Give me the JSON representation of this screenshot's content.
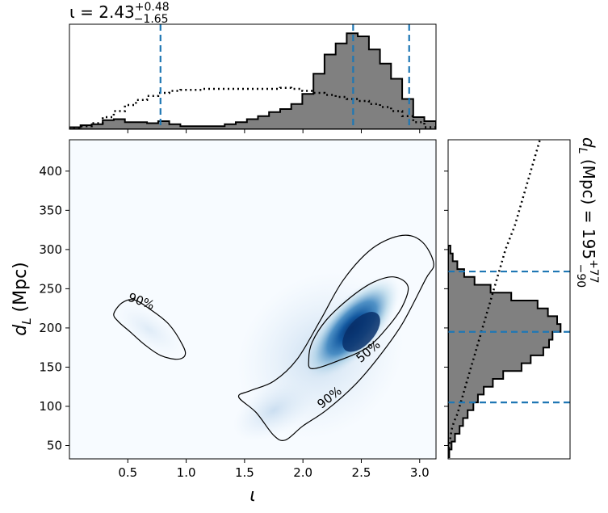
{
  "chart_data": {
    "type": "corner",
    "parameters": [
      "iota",
      "d_L"
    ],
    "marginal_x": {
      "title_main": "ι = 2.43",
      "title_sup": "+0.48",
      "title_sub": "−1.65",
      "median": 2.43,
      "lower": 0.78,
      "upper": 2.91,
      "bin_edges": [
        0.0,
        0.095,
        0.19,
        0.285,
        0.38,
        0.475,
        0.57,
        0.665,
        0.76,
        0.855,
        0.95,
        1.045,
        1.14,
        1.235,
        1.33,
        1.425,
        1.52,
        1.615,
        1.71,
        1.805,
        1.9,
        1.995,
        2.09,
        2.185,
        2.28,
        2.375,
        2.47,
        2.565,
        2.66,
        2.755,
        2.85,
        2.945,
        3.04,
        3.14
      ],
      "posterior_density": [
        0.02,
        0.04,
        0.05,
        0.09,
        0.1,
        0.07,
        0.07,
        0.06,
        0.08,
        0.05,
        0.03,
        0.03,
        0.03,
        0.03,
        0.05,
        0.07,
        0.1,
        0.13,
        0.17,
        0.2,
        0.25,
        0.35,
        0.55,
        0.74,
        0.85,
        0.95,
        0.92,
        0.79,
        0.65,
        0.5,
        0.3,
        0.12,
        0.08
      ],
      "prior_density": [
        0.01,
        0.03,
        0.06,
        0.12,
        0.18,
        0.24,
        0.29,
        0.33,
        0.36,
        0.38,
        0.39,
        0.39,
        0.4,
        0.4,
        0.4,
        0.4,
        0.4,
        0.4,
        0.4,
        0.41,
        0.4,
        0.38,
        0.36,
        0.34,
        0.32,
        0.3,
        0.28,
        0.25,
        0.22,
        0.18,
        0.13,
        0.07,
        0.02
      ]
    },
    "marginal_y": {
      "title_main": "d",
      "title_sub_var": "L",
      "title_rest": " (Mpc) = 195",
      "title_sup": "+77",
      "title_sub": "−90",
      "median": 195,
      "lower": 105,
      "upper": 272,
      "bin_edges": [
        35,
        45,
        55,
        65,
        75,
        85,
        95,
        105,
        115,
        125,
        135,
        145,
        155,
        165,
        175,
        185,
        195,
        205,
        215,
        225,
        235,
        245,
        255,
        265,
        275,
        285,
        295,
        305
      ],
      "posterior_density": [
        0.01,
        0.03,
        0.06,
        0.1,
        0.13,
        0.17,
        0.22,
        0.26,
        0.31,
        0.39,
        0.48,
        0.64,
        0.72,
        0.83,
        0.88,
        0.91,
        0.98,
        0.95,
        0.87,
        0.78,
        0.55,
        0.37,
        0.23,
        0.14,
        0.08,
        0.04,
        0.02
      ],
      "prior_density": [
        0.0,
        0.01,
        0.02,
        0.03,
        0.05,
        0.08,
        0.1,
        0.12,
        0.14,
        0.16,
        0.18,
        0.2,
        0.22,
        0.24,
        0.26,
        0.28,
        0.3,
        0.32,
        0.34,
        0.36,
        0.38,
        0.4,
        0.42,
        0.44,
        0.46,
        0.48,
        0.5
      ]
    },
    "joint": {
      "xlabel": "ι",
      "ylabel": "d",
      "ylabel_sub": "L",
      "ylabel_rest": " (Mpc)",
      "xlim": [
        0.0,
        3.14
      ],
      "ylim": [
        33,
        440
      ],
      "xticks": [
        0.5,
        1.0,
        1.5,
        2.0,
        2.5,
        3.0
      ],
      "xtick_labels": [
        "0.5",
        "1.0",
        "1.5",
        "2.0",
        "2.5",
        "3.0"
      ],
      "yticks": [
        50,
        100,
        150,
        200,
        250,
        300,
        350,
        400
      ],
      "ytick_labels": [
        "50",
        "100",
        "150",
        "200",
        "250",
        "300",
        "350",
        "400"
      ],
      "contour_labels": [
        "90%",
        "50%",
        "90%"
      ],
      "density_peak": [
        2.5,
        195
      ],
      "colormap": "Blues",
      "contour_90_main": [
        [
          1.45,
          112
        ],
        [
          1.6,
          92
        ],
        [
          1.75,
          63
        ],
        [
          1.85,
          57
        ],
        [
          2.0,
          75
        ],
        [
          2.2,
          95
        ],
        [
          2.45,
          128
        ],
        [
          2.65,
          163
        ],
        [
          2.85,
          205
        ],
        [
          3.05,
          262
        ],
        [
          3.12,
          282
        ],
        [
          3.02,
          310
        ],
        [
          2.85,
          318
        ],
        [
          2.6,
          302
        ],
        [
          2.35,
          262
        ],
        [
          2.15,
          210
        ],
        [
          1.95,
          160
        ],
        [
          1.75,
          132
        ],
        [
          1.55,
          120
        ]
      ],
      "contour_90_small": [
        [
          0.38,
          218
        ],
        [
          0.45,
          232
        ],
        [
          0.55,
          236
        ],
        [
          0.68,
          225
        ],
        [
          0.85,
          205
        ],
        [
          0.97,
          178
        ],
        [
          0.99,
          165
        ],
        [
          0.92,
          160
        ],
        [
          0.78,
          165
        ],
        [
          0.65,
          178
        ],
        [
          0.52,
          195
        ],
        [
          0.42,
          208
        ]
      ],
      "contour_50": [
        [
          2.08,
          148
        ],
        [
          2.3,
          158
        ],
        [
          2.55,
          175
        ],
        [
          2.72,
          200
        ],
        [
          2.85,
          227
        ],
        [
          2.9,
          253
        ],
        [
          2.78,
          265
        ],
        [
          2.6,
          258
        ],
        [
          2.4,
          238
        ],
        [
          2.2,
          210
        ],
        [
          2.08,
          182
        ],
        [
          2.05,
          160
        ]
      ]
    },
    "colors": {
      "posterior_fill": "#808080",
      "credible_line": "#1f77b4",
      "contour": "#000000",
      "heat_peak": "#08306b",
      "heat_mid": "#2878b8",
      "heat_low": "#c6dbef",
      "heat_bg": "#f7fbff"
    }
  }
}
